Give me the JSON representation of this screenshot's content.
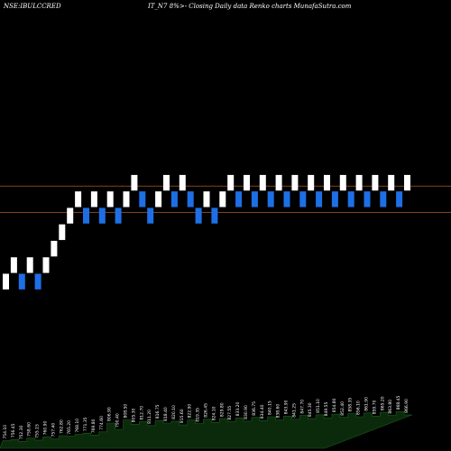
{
  "header": {
    "left": "NSE:IBULCCRED",
    "right": "IT_N7 8%>- Closing Daily data Renko charts MunafaSutra.com"
  },
  "colors": {
    "background": "#000000",
    "up_brick": "#ffffff",
    "down_brick": "#1e6fe6",
    "reference_line": "#b05a1e",
    "volume_fill": "#0b2a0b",
    "volume_stroke": "#1b5e1b"
  },
  "chart_data": {
    "type": "renko",
    "bricks": [
      {
        "dir": "up",
        "price": 102
      },
      {
        "dir": "up",
        "price": 103
      },
      {
        "dir": "down",
        "price": 102
      },
      {
        "dir": "up",
        "price": 103
      },
      {
        "dir": "down",
        "price": 102
      },
      {
        "dir": "up",
        "price": 103
      },
      {
        "dir": "up",
        "price": 104
      },
      {
        "dir": "up",
        "price": 105
      },
      {
        "dir": "up",
        "price": 106
      },
      {
        "dir": "up",
        "price": 107
      },
      {
        "dir": "down",
        "price": 106
      },
      {
        "dir": "up",
        "price": 107
      },
      {
        "dir": "down",
        "price": 106
      },
      {
        "dir": "up",
        "price": 107
      },
      {
        "dir": "down",
        "price": 106
      },
      {
        "dir": "up",
        "price": 107
      },
      {
        "dir": "up",
        "price": 108
      },
      {
        "dir": "down",
        "price": 107
      },
      {
        "dir": "down",
        "price": 106
      },
      {
        "dir": "up",
        "price": 107
      },
      {
        "dir": "up",
        "price": 108
      },
      {
        "dir": "down",
        "price": 107
      },
      {
        "dir": "up",
        "price": 108
      },
      {
        "dir": "down",
        "price": 107
      },
      {
        "dir": "down",
        "price": 106
      },
      {
        "dir": "up",
        "price": 107
      },
      {
        "dir": "down",
        "price": 106
      },
      {
        "dir": "up",
        "price": 107
      },
      {
        "dir": "up",
        "price": 108
      },
      {
        "dir": "down",
        "price": 107
      },
      {
        "dir": "up",
        "price": 108
      },
      {
        "dir": "down",
        "price": 107
      },
      {
        "dir": "up",
        "price": 108
      },
      {
        "dir": "down",
        "price": 107
      },
      {
        "dir": "up",
        "price": 108
      },
      {
        "dir": "down",
        "price": 107
      },
      {
        "dir": "up",
        "price": 108
      },
      {
        "dir": "down",
        "price": 107
      },
      {
        "dir": "up",
        "price": 108
      },
      {
        "dir": "down",
        "price": 107
      },
      {
        "dir": "up",
        "price": 108
      },
      {
        "dir": "down",
        "price": 107
      },
      {
        "dir": "up",
        "price": 108
      },
      {
        "dir": "down",
        "price": 107
      },
      {
        "dir": "up",
        "price": 108
      },
      {
        "dir": "down",
        "price": 107
      },
      {
        "dir": "up",
        "price": 108
      },
      {
        "dir": "down",
        "price": 107
      },
      {
        "dir": "up",
        "price": 108
      },
      {
        "dir": "down",
        "price": 107
      },
      {
        "dir": "up",
        "price": 108
      }
    ],
    "reference_lines": [
      107.8,
      106.2
    ],
    "price_range": [
      95,
      118
    ],
    "volume_labels": [
      "754.10",
      "756.45",
      "752.30",
      "758.60",
      "755.15",
      "760.90",
      "757.40",
      "762.80",
      "765.20",
      "768.10",
      "771.35",
      "769.80",
      "774.60",
      "806.90",
      "790.40",
      "808.50",
      "805.30",
      "812.70",
      "811.20",
      "816.75",
      "818.40",
      "820.10",
      "815.60",
      "822.90",
      "819.35",
      "826.45",
      "824.10",
      "829.80",
      "827.55",
      "833.20",
      "830.90",
      "836.75",
      "834.40",
      "840.15",
      "838.60",
      "843.90",
      "841.25",
      "847.70",
      "845.30",
      "851.10",
      "849.55",
      "854.80",
      "852.40",
      "858.35",
      "856.10",
      "861.90",
      "859.70",
      "865.20",
      "863.80",
      "868.45",
      "866.90"
    ],
    "volume": [
      12,
      14,
      11,
      16,
      13,
      18,
      15,
      20,
      19,
      22,
      24,
      21,
      26,
      40,
      30,
      45,
      38,
      42,
      36,
      44,
      40,
      43,
      37,
      45,
      39,
      46,
      41,
      47,
      42,
      48,
      43,
      49,
      44,
      50,
      45,
      51,
      46,
      52,
      47,
      53,
      48,
      54,
      49,
      55,
      50,
      56,
      51,
      57,
      52,
      58,
      53
    ],
    "volume_max": 60
  }
}
